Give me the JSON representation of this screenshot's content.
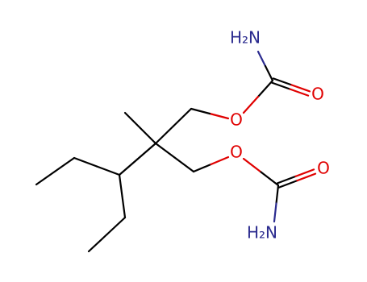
{
  "nodes": [
    {
      "label": "H₂N"
    },
    {
      "label": "O"
    },
    {
      "label": "O"
    },
    {
      "label": "O"
    },
    {
      "label": "O"
    },
    {
      "label": "H₂N"
    }
  ]
}
